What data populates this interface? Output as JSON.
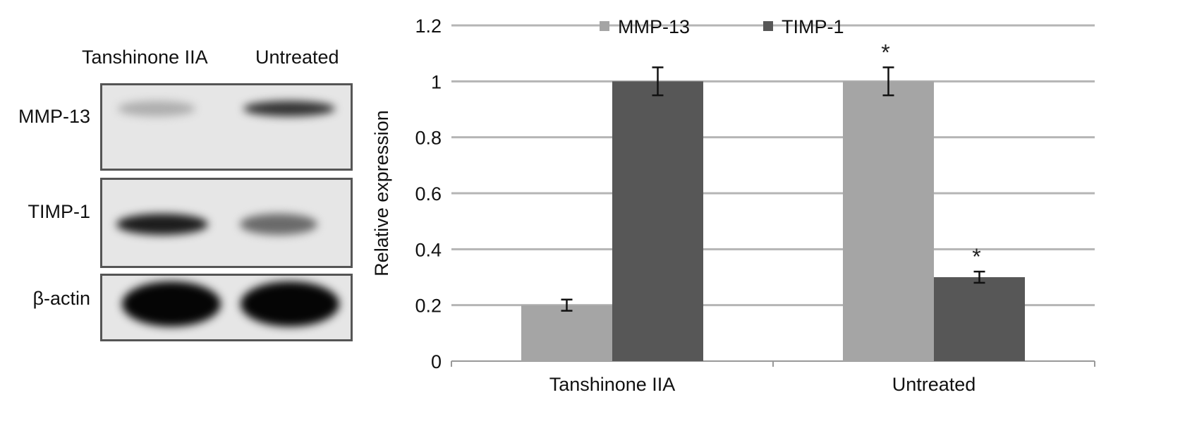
{
  "blot": {
    "lanes": [
      "Tanshinone IIA",
      "Untreated"
    ],
    "rows": [
      {
        "label": "MMP-13",
        "intensities": [
          0.25,
          0.8
        ]
      },
      {
        "label": "TIMP-1",
        "intensities": [
          0.9,
          0.55
        ]
      },
      {
        "label": "β-actin",
        "intensities": [
          1.0,
          1.0
        ]
      }
    ]
  },
  "chart_data": {
    "type": "bar",
    "categories": [
      "Tanshinone IIA",
      "Untreated"
    ],
    "series": [
      {
        "name": "MMP-13",
        "color": "#a5a5a5",
        "values": [
          0.2,
          1.0
        ],
        "errors": [
          0.02,
          0.05
        ],
        "significance": [
          "",
          "*"
        ]
      },
      {
        "name": "TIMP-1",
        "color": "#575757",
        "values": [
          1.0,
          0.3
        ],
        "errors": [
          0.05,
          0.02
        ],
        "significance": [
          "",
          "*"
        ]
      }
    ],
    "xlabel": "",
    "ylabel": "Relative expression",
    "ylim": [
      0,
      1.2
    ],
    "yticks": [
      "0",
      "0.2",
      "0.4",
      "0.6",
      "0.8",
      "1",
      "1.2"
    ],
    "grid": true,
    "legend": "top"
  }
}
